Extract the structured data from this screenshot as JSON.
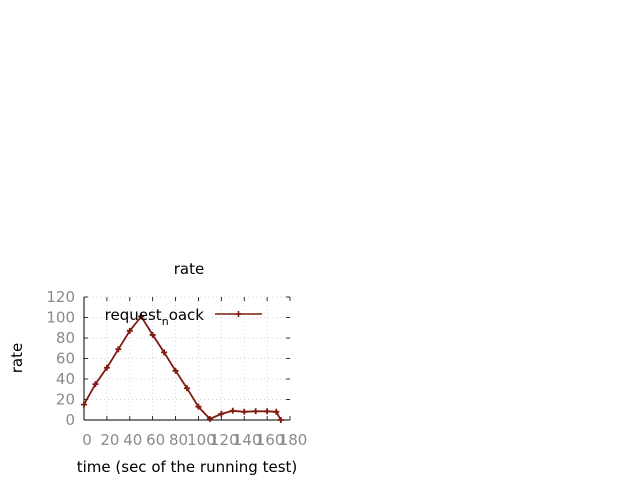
{
  "chart_data": {
    "type": "line",
    "title": "rate",
    "xlabel": "time (sec of the running test)",
    "ylabel": "rate",
    "xlim": [
      0,
      180
    ],
    "ylim": [
      0,
      120
    ],
    "xticks": [
      "0",
      "20",
      "40",
      "60",
      "80",
      "100",
      "120",
      "140",
      "160",
      "180"
    ],
    "yticks": [
      "0",
      "20",
      "40",
      "60",
      "80",
      "100",
      "120"
    ],
    "grid": true,
    "legend_position": "top-right",
    "series": [
      {
        "name_main": "request",
        "name_sub": "n",
        "name_rest": "oack",
        "color": "#7f1a10",
        "marker": "plus",
        "points": [
          [
            0,
            15
          ],
          [
            10,
            35
          ],
          [
            20,
            51
          ],
          [
            30,
            69
          ],
          [
            40,
            87
          ],
          [
            50,
            101
          ],
          [
            60,
            83
          ],
          [
            70,
            66
          ],
          [
            80,
            48
          ],
          [
            90,
            31
          ],
          [
            100,
            13
          ],
          [
            110,
            1
          ],
          [
            120,
            6
          ],
          [
            130,
            9
          ],
          [
            140,
            8
          ],
          [
            150,
            8.5
          ],
          [
            160,
            8.5
          ],
          [
            168,
            8
          ],
          [
            172,
            0
          ]
        ]
      }
    ]
  }
}
